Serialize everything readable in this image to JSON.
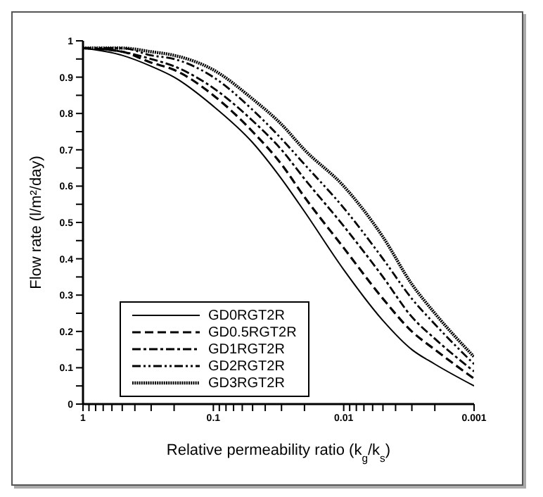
{
  "chart_data": {
    "type": "line",
    "xlabel": "Relative permeability ratio (k$_{g}$/k$_{s}$)",
    "ylabel": "Flow rate (l/m²/day)",
    "x": [
      1,
      0.5,
      0.3,
      0.2,
      0.1,
      0.05,
      0.03,
      0.02,
      0.01,
      0.005,
      0.003,
      0.002,
      0.001
    ],
    "series": [
      {
        "name": "GD0RGT2R",
        "color": "#000000",
        "line_style": "solid",
        "values": [
          0.98,
          0.96,
          0.93,
          0.9,
          0.82,
          0.72,
          0.62,
          0.53,
          0.37,
          0.23,
          0.15,
          0.11,
          0.05
        ]
      },
      {
        "name": "GD0.5RGT2R",
        "color": "#000000",
        "line_style": "dashed",
        "values": [
          0.98,
          0.97,
          0.94,
          0.92,
          0.85,
          0.75,
          0.66,
          0.57,
          0.43,
          0.29,
          0.2,
          0.15,
          0.07
        ]
      },
      {
        "name": "GD1RGT2R",
        "color": "#000000",
        "line_style": "dashdot",
        "values": [
          0.98,
          0.97,
          0.95,
          0.93,
          0.87,
          0.78,
          0.7,
          0.62,
          0.49,
          0.35,
          0.24,
          0.18,
          0.09
        ]
      },
      {
        "name": "GD2RGT2R",
        "color": "#000000",
        "line_style": "dashdotdot",
        "values": [
          0.98,
          0.98,
          0.96,
          0.95,
          0.9,
          0.81,
          0.73,
          0.66,
          0.54,
          0.4,
          0.29,
          0.22,
          0.11
        ]
      },
      {
        "name": "GD3RGT2R",
        "color": "#000000",
        "line_style": "dotted",
        "values": [
          0.98,
          0.98,
          0.97,
          0.96,
          0.92,
          0.84,
          0.77,
          0.7,
          0.6,
          0.46,
          0.33,
          0.25,
          0.13
        ]
      }
    ],
    "log": "x",
    "xlim": [
      1,
      0.001
    ],
    "xticks": [
      1,
      {
        "value": 0.9,
        "label": null
      },
      {
        "value": 0.8,
        "label": null
      },
      {
        "value": 0.7,
        "label": null
      },
      {
        "value": 0.6,
        "label": null
      },
      {
        "value": 0.5,
        "label": null
      },
      {
        "value": 0.4,
        "label": null
      },
      {
        "value": 0.3,
        "label": null
      },
      {
        "value": 0.2,
        "label": null
      },
      0.1,
      {
        "value": 0.09,
        "label": null
      },
      {
        "value": 0.08,
        "label": null
      },
      {
        "value": 0.07,
        "label": null
      },
      {
        "value": 0.06,
        "label": null
      },
      {
        "value": 0.05,
        "label": null
      },
      {
        "value": 0.04,
        "label": null
      },
      {
        "value": 0.03,
        "label": null
      },
      {
        "value": 0.02,
        "label": null
      },
      0.01,
      {
        "value": 0.009,
        "label": null
      },
      {
        "value": 0.008,
        "label": null
      },
      {
        "value": 0.007,
        "label": null
      },
      {
        "value": 0.006,
        "label": null
      },
      {
        "value": 0.005,
        "label": null
      },
      {
        "value": 0.004,
        "label": null
      },
      {
        "value": 0.003,
        "label": null
      },
      {
        "value": 0.002,
        "label": null
      },
      0.001
    ],
    "ylim": [
      0,
      1
    ],
    "yticks": [
      0,
      {
        "value": 0.05,
        "label": null
      },
      0.1,
      {
        "value": 0.15,
        "label": null
      },
      0.2,
      {
        "value": 0.25,
        "label": null
      },
      0.3,
      {
        "value": 0.35,
        "label": null
      },
      0.4,
      {
        "value": 0.45,
        "label": null
      },
      0.5,
      {
        "value": 0.55,
        "label": null
      },
      0.6,
      {
        "value": 0.65,
        "label": null
      },
      0.7,
      {
        "value": 0.75,
        "label": null
      },
      0.8,
      {
        "value": 0.85,
        "label": null
      },
      0.9,
      {
        "value": 0.95,
        "label": null
      },
      1
    ],
    "grid": false,
    "legend": "bottom left",
    "marker": "none"
  }
}
